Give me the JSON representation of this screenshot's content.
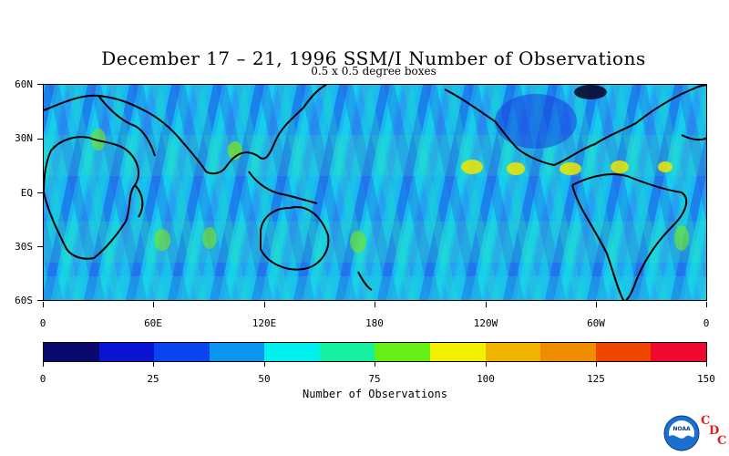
{
  "title": "December 17 – 21, 1996 SSM/I Number of Observations",
  "subtitle": "0.5 x 0.5 degree boxes",
  "lat_labels": [
    "60N",
    "30N",
    "EQ",
    "30S",
    "60S"
  ],
  "lon_labels": [
    "0",
    "60E",
    "120E",
    "180",
    "120W",
    "60W",
    "0"
  ],
  "colorbar": {
    "title": "Number of Observations",
    "tick_labels": [
      "0",
      "25",
      "50",
      "75",
      "100",
      "125",
      "150"
    ],
    "range": [
      0,
      150
    ],
    "colors": [
      "#0a0a6e",
      "#0a14d2",
      "#0a46f0",
      "#0a96f0",
      "#00f0f0",
      "#14f0a0",
      "#64f014",
      "#f0f000",
      "#f0b400",
      "#f08c00",
      "#f04600",
      "#f00a32"
    ]
  },
  "logo": {
    "icon": "noaa-logo",
    "text": "NOAA",
    "letters": [
      "C",
      "D",
      "C"
    ]
  }
}
